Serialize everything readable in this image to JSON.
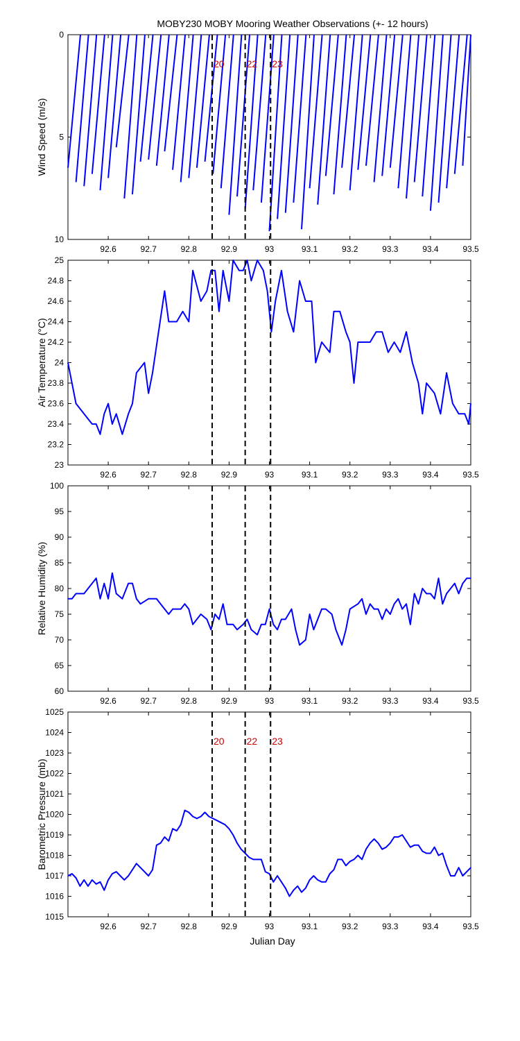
{
  "title": "MOBY230 MOBY Mooring Weather Observations (+- 12 hours)",
  "xlabel": "Julian Day",
  "colors": {
    "series": "#0000ff",
    "marker_label": "#cc0000",
    "axis": "#000000"
  },
  "x_ticks": [
    "92.6",
    "92.7",
    "92.8",
    "92.9",
    "93",
    "93.1",
    "93.2",
    "93.3",
    "93.4",
    "93.5"
  ],
  "markers": [
    {
      "x": 92.858,
      "label": "20"
    },
    {
      "x": 92.94,
      "label": "22"
    },
    {
      "x": 93.003,
      "label": "23"
    }
  ],
  "chart_data": [
    {
      "type": "line",
      "subtype": "wind-stick",
      "ylabel": "Wind Speed (m/s)",
      "xlim": [
        92.5,
        93.5
      ],
      "ylim": [
        0,
        10
      ],
      "y_reversed": true,
      "y_ticks": [
        "0",
        "5",
        "10"
      ],
      "marker_labels_shown": true,
      "series": [
        {
          "x": [
            92.5,
            92.52,
            92.54,
            92.56,
            92.58,
            92.6,
            92.62,
            92.64,
            92.66,
            92.68,
            92.7,
            92.72,
            92.74,
            92.76,
            92.78,
            92.8,
            92.82,
            92.84,
            92.86,
            92.88,
            92.9,
            92.92,
            92.94,
            92.96,
            92.98,
            93.0,
            93.02,
            93.04,
            93.06,
            93.08,
            93.1,
            93.12,
            93.14,
            93.16,
            93.18,
            93.2,
            93.22,
            93.24,
            93.26,
            93.28,
            93.3,
            93.32,
            93.34,
            93.36,
            93.38,
            93.4,
            93.42,
            93.44,
            93.46,
            93.48
          ],
          "values": [
            6.5,
            7.2,
            7.4,
            6.8,
            7.6,
            7.0,
            5.5,
            8.0,
            7.8,
            6.2,
            6.1,
            6.4,
            5.7,
            6.6,
            7.2,
            7.0,
            6.5,
            6.2,
            6.8,
            7.5,
            8.8,
            7.9,
            8.5,
            7.6,
            8.2,
            9.6,
            9.0,
            8.7,
            8.2,
            9.5,
            7.5,
            8.3,
            6.9,
            7.8,
            6.5,
            7.6,
            6.6,
            6.4,
            7.2,
            6.9,
            6.5,
            7.5,
            8.0,
            7.2,
            7.9,
            8.6,
            8.2,
            7.5,
            6.8,
            6.4
          ]
        }
      ]
    },
    {
      "type": "line",
      "ylabel": "Air Temperature (°C)",
      "xlim": [
        92.5,
        93.5
      ],
      "ylim": [
        23,
        25
      ],
      "y_ticks": [
        "23",
        "23.2",
        "23.4",
        "23.6",
        "23.8",
        "24",
        "24.2",
        "24.4",
        "24.6",
        "24.8",
        "25"
      ],
      "series": [
        {
          "x": [
            92.5,
            92.52,
            92.54,
            92.56,
            92.57,
            92.58,
            92.59,
            92.6,
            92.61,
            92.62,
            92.635,
            92.65,
            92.66,
            92.67,
            92.69,
            92.7,
            92.71,
            92.725,
            92.74,
            92.75,
            92.76,
            92.77,
            92.785,
            92.8,
            92.81,
            92.83,
            92.845,
            92.855,
            92.865,
            92.875,
            92.885,
            92.9,
            92.91,
            92.925,
            92.935,
            92.945,
            92.955,
            92.97,
            92.985,
            92.995,
            93.005,
            93.015,
            93.03,
            93.045,
            93.06,
            93.075,
            93.09,
            93.105,
            93.115,
            93.13,
            93.15,
            93.16,
            93.175,
            93.19,
            93.2,
            93.21,
            93.22,
            93.235,
            93.25,
            93.265,
            93.28,
            93.295,
            93.31,
            93.325,
            93.34,
            93.355,
            93.37,
            93.38,
            93.39,
            93.41,
            93.425,
            93.44,
            93.455,
            93.47,
            93.485,
            93.495,
            93.5
          ],
          "values": [
            24.0,
            23.6,
            23.5,
            23.4,
            23.4,
            23.3,
            23.5,
            23.6,
            23.4,
            23.5,
            23.3,
            23.5,
            23.6,
            23.9,
            24.0,
            23.7,
            23.9,
            24.3,
            24.7,
            24.4,
            24.4,
            24.4,
            24.5,
            24.4,
            24.9,
            24.6,
            24.7,
            24.9,
            24.9,
            24.5,
            24.9,
            24.6,
            25.0,
            24.9,
            24.9,
            25.0,
            24.8,
            25.0,
            24.9,
            24.7,
            24.3,
            24.6,
            24.9,
            24.5,
            24.3,
            24.8,
            24.6,
            24.6,
            24.0,
            24.2,
            24.1,
            24.5,
            24.5,
            24.3,
            24.2,
            23.8,
            24.2,
            24.2,
            24.2,
            24.3,
            24.3,
            24.1,
            24.2,
            24.1,
            24.3,
            24.0,
            23.8,
            23.5,
            23.8,
            23.7,
            23.5,
            23.9,
            23.6,
            23.5,
            23.5,
            23.4,
            23.6
          ]
        }
      ]
    },
    {
      "type": "line",
      "ylabel": "Relative Humidity (%)",
      "xlim": [
        92.5,
        93.5
      ],
      "ylim": [
        60,
        100
      ],
      "y_ticks": [
        "60",
        "65",
        "70",
        "75",
        "80",
        "85",
        "90",
        "95",
        "100"
      ],
      "series": [
        {
          "x": [
            92.5,
            92.51,
            92.52,
            92.54,
            92.55,
            92.57,
            92.58,
            92.59,
            92.6,
            92.61,
            92.62,
            92.635,
            92.65,
            92.66,
            92.67,
            92.68,
            92.7,
            92.72,
            92.73,
            92.75,
            92.76,
            92.78,
            92.79,
            92.8,
            92.81,
            92.83,
            92.845,
            92.855,
            92.865,
            92.875,
            92.885,
            92.895,
            92.91,
            92.92,
            92.935,
            92.945,
            92.955,
            92.97,
            92.98,
            92.99,
            93.0,
            93.01,
            93.02,
            93.03,
            93.04,
            93.055,
            93.065,
            93.075,
            93.09,
            93.1,
            93.11,
            93.13,
            93.14,
            93.155,
            93.165,
            93.18,
            93.19,
            93.2,
            93.22,
            93.23,
            93.24,
            93.25,
            93.26,
            93.27,
            93.28,
            93.29,
            93.3,
            93.31,
            93.32,
            93.33,
            93.34,
            93.35,
            93.36,
            93.37,
            93.38,
            93.39,
            93.4,
            93.41,
            93.42,
            93.43,
            93.44,
            93.46,
            93.47,
            93.48,
            93.49,
            93.5
          ],
          "values": [
            78,
            78,
            79,
            79,
            80,
            82,
            78,
            81,
            78,
            83,
            79,
            78,
            81,
            81,
            78,
            77,
            78,
            78,
            77,
            75,
            76,
            76,
            77,
            76,
            73,
            75,
            74,
            72,
            75,
            74,
            77,
            73,
            73,
            72,
            73,
            74,
            72,
            71,
            73,
            73,
            76,
            73,
            72,
            74,
            74,
            76,
            72,
            69,
            70,
            75,
            72,
            76,
            76,
            75,
            72,
            69,
            72,
            76,
            77,
            78,
            75,
            77,
            76,
            76,
            74,
            76,
            75,
            77,
            78,
            76,
            77,
            73,
            79,
            77,
            80,
            79,
            79,
            78,
            82,
            77,
            79,
            81,
            79,
            81,
            82,
            82
          ]
        }
      ]
    },
    {
      "type": "line",
      "ylabel": "Barometric Pressure (mb)",
      "xlim": [
        92.5,
        93.5
      ],
      "ylim": [
        1015,
        1025
      ],
      "y_ticks": [
        "1015",
        "1016",
        "1017",
        "1018",
        "1019",
        "1020",
        "1021",
        "1022",
        "1023",
        "1024",
        "1025"
      ],
      "marker_labels_shown": true,
      "series": [
        {
          "x": [
            92.5,
            92.51,
            92.52,
            92.53,
            92.54,
            92.55,
            92.56,
            92.57,
            92.58,
            92.59,
            92.6,
            92.61,
            92.62,
            92.63,
            92.64,
            92.65,
            92.66,
            92.67,
            92.68,
            92.69,
            92.7,
            92.71,
            92.72,
            92.73,
            92.74,
            92.75,
            92.76,
            92.77,
            92.78,
            92.79,
            92.8,
            92.81,
            92.82,
            92.83,
            92.84,
            92.85,
            92.86,
            92.87,
            92.88,
            92.89,
            92.9,
            92.91,
            92.92,
            92.93,
            92.94,
            92.95,
            92.96,
            92.97,
            92.98,
            92.99,
            93.0,
            93.01,
            93.02,
            93.03,
            93.04,
            93.05,
            93.06,
            93.07,
            93.08,
            93.09,
            93.1,
            93.11,
            93.12,
            93.13,
            93.14,
            93.15,
            93.16,
            93.17,
            93.18,
            93.19,
            93.2,
            93.21,
            93.22,
            93.23,
            93.24,
            93.25,
            93.26,
            93.27,
            93.28,
            93.29,
            93.3,
            93.31,
            93.32,
            93.33,
            93.34,
            93.35,
            93.36,
            93.37,
            93.38,
            93.39,
            93.4,
            93.41,
            93.42,
            93.43,
            93.44,
            93.45,
            93.46,
            93.47,
            93.48,
            93.49,
            93.5
          ],
          "values": [
            1017.0,
            1017.1,
            1016.9,
            1016.5,
            1016.8,
            1016.5,
            1016.8,
            1016.6,
            1016.7,
            1016.3,
            1016.8,
            1017.1,
            1017.2,
            1017.0,
            1016.8,
            1017.0,
            1017.3,
            1017.6,
            1017.4,
            1017.2,
            1017.0,
            1017.3,
            1018.5,
            1018.6,
            1018.9,
            1018.7,
            1019.3,
            1019.2,
            1019.5,
            1020.2,
            1020.1,
            1019.9,
            1019.8,
            1019.9,
            1020.1,
            1019.9,
            1019.8,
            1019.7,
            1019.6,
            1019.5,
            1019.3,
            1019.0,
            1018.6,
            1018.3,
            1018.1,
            1017.9,
            1017.8,
            1017.8,
            1017.8,
            1017.2,
            1017.1,
            1016.7,
            1017.0,
            1016.7,
            1016.4,
            1016.0,
            1016.3,
            1016.5,
            1016.2,
            1016.4,
            1016.8,
            1017.0,
            1016.8,
            1016.7,
            1016.7,
            1017.1,
            1017.3,
            1017.8,
            1017.8,
            1017.5,
            1017.7,
            1017.8,
            1018.0,
            1017.8,
            1018.3,
            1018.6,
            1018.8,
            1018.6,
            1018.3,
            1018.4,
            1018.6,
            1018.9,
            1018.9,
            1019.0,
            1018.7,
            1018.4,
            1018.5,
            1018.5,
            1018.2,
            1018.1,
            1018.1,
            1018.4,
            1018.0,
            1018.1,
            1017.5,
            1017.0,
            1017.0,
            1017.4,
            1017.0,
            1017.2,
            1017.4
          ]
        }
      ]
    }
  ]
}
